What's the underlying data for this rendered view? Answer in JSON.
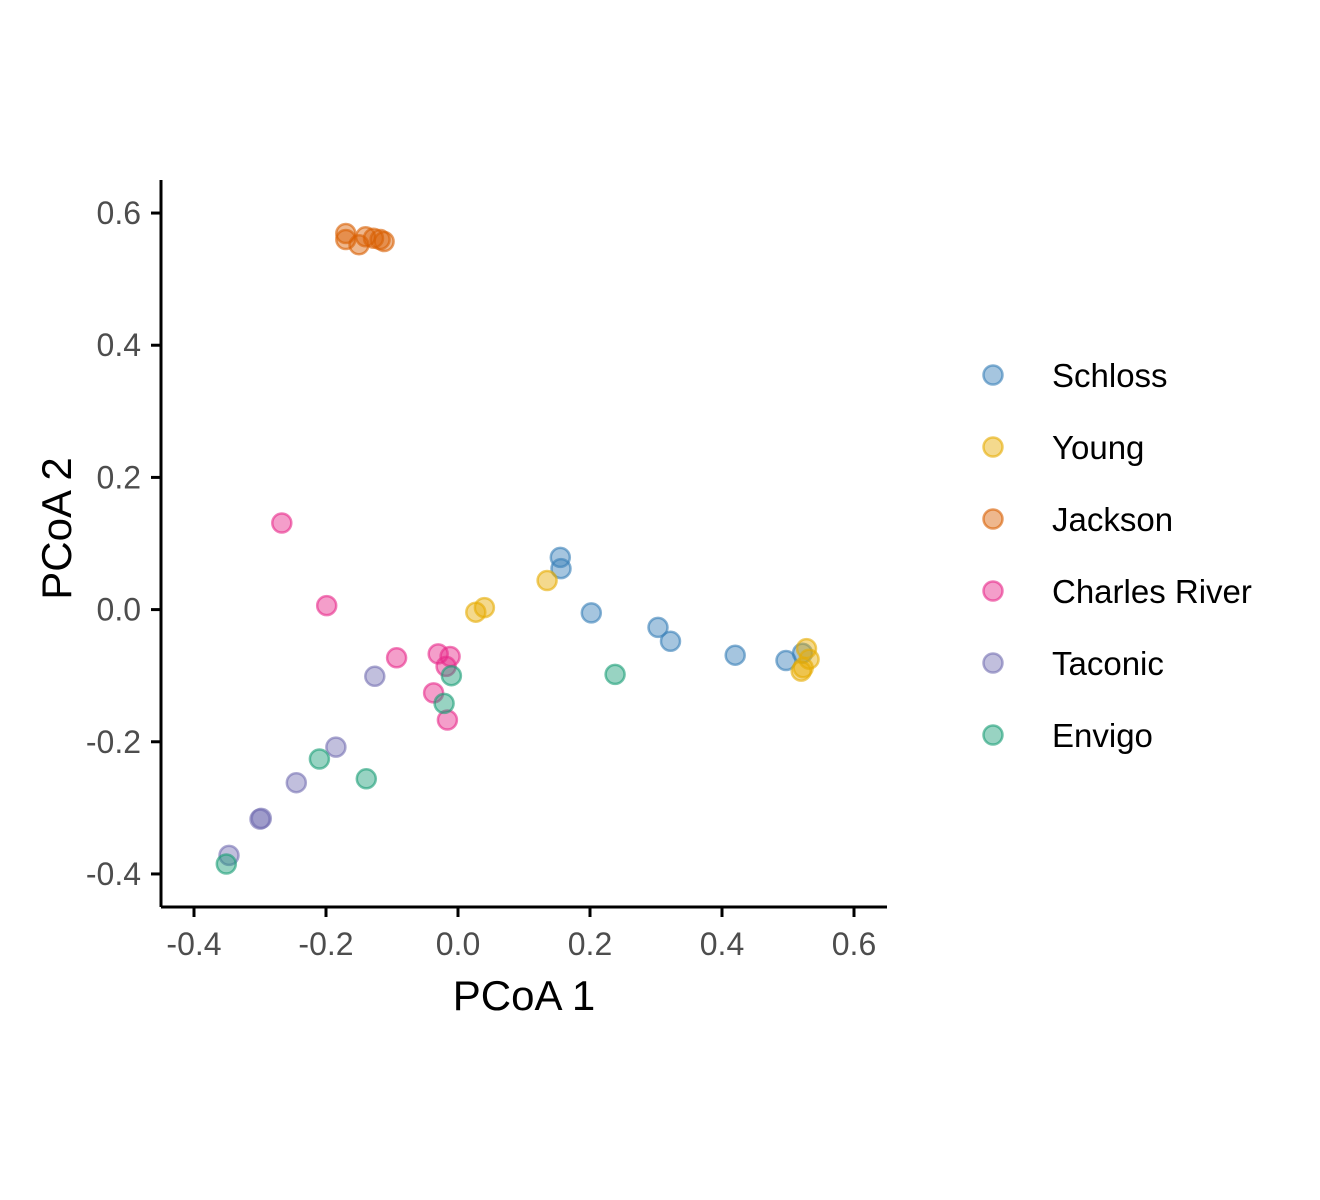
{
  "chart_data": {
    "type": "scatter",
    "title": "",
    "xlabel": "PCoA 1",
    "ylabel": "PCoA 2",
    "xlim": [
      -0.45,
      0.65
    ],
    "ylim": [
      -0.45,
      0.65
    ],
    "x_ticks": [
      "-0.4",
      "-0.2",
      "0.0",
      "0.2",
      "0.4",
      "0.6"
    ],
    "y_ticks": [
      "-0.4",
      "-0.2",
      "0.0",
      "0.2",
      "0.4",
      "0.6"
    ],
    "grid": false,
    "legend_position": "right",
    "series": [
      {
        "name": "Schloss",
        "color": "#377eb8",
        "points": [
          {
            "x": 0.155,
            "y": 0.079
          },
          {
            "x": 0.156,
            "y": 0.062
          },
          {
            "x": 0.202,
            "y": -0.005
          },
          {
            "x": 0.303,
            "y": -0.027
          },
          {
            "x": 0.322,
            "y": -0.048
          },
          {
            "x": 0.42,
            "y": -0.069
          },
          {
            "x": 0.497,
            "y": -0.077
          },
          {
            "x": 0.522,
            "y": -0.066
          }
        ]
      },
      {
        "name": "Young",
        "color": "#e6ab02",
        "points": [
          {
            "x": 0.135,
            "y": 0.044
          },
          {
            "x": 0.027,
            "y": -0.004
          },
          {
            "x": 0.04,
            "y": 0.003
          },
          {
            "x": 0.528,
            "y": -0.059
          },
          {
            "x": 0.532,
            "y": -0.075
          },
          {
            "x": 0.52,
            "y": -0.093
          },
          {
            "x": 0.523,
            "y": -0.088
          }
        ]
      },
      {
        "name": "Jackson",
        "color": "#d95f02",
        "points": [
          {
            "x": -0.17,
            "y": 0.569
          },
          {
            "x": -0.17,
            "y": 0.56
          },
          {
            "x": -0.15,
            "y": 0.552
          },
          {
            "x": -0.14,
            "y": 0.564
          },
          {
            "x": -0.128,
            "y": 0.562
          },
          {
            "x": -0.118,
            "y": 0.56
          },
          {
            "x": -0.112,
            "y": 0.557
          }
        ]
      },
      {
        "name": "Charles River",
        "color": "#e7298a",
        "points": [
          {
            "x": -0.267,
            "y": 0.131
          },
          {
            "x": -0.199,
            "y": 0.006
          },
          {
            "x": -0.093,
            "y": -0.073
          },
          {
            "x": -0.03,
            "y": -0.067
          },
          {
            "x": -0.012,
            "y": -0.071
          },
          {
            "x": -0.018,
            "y": -0.086
          },
          {
            "x": -0.037,
            "y": -0.126
          },
          {
            "x": -0.016,
            "y": -0.167
          }
        ]
      },
      {
        "name": "Taconic",
        "color": "#7570b3",
        "points": [
          {
            "x": -0.126,
            "y": -0.101
          },
          {
            "x": -0.185,
            "y": -0.208
          },
          {
            "x": -0.245,
            "y": -0.262
          },
          {
            "x": -0.3,
            "y": -0.317
          },
          {
            "x": -0.298,
            "y": -0.316
          },
          {
            "x": -0.347,
            "y": -0.372
          }
        ]
      },
      {
        "name": "Envigo",
        "color": "#1b9e77",
        "points": [
          {
            "x": 0.238,
            "y": -0.098
          },
          {
            "x": -0.01,
            "y": -0.1
          },
          {
            "x": -0.021,
            "y": -0.142
          },
          {
            "x": -0.21,
            "y": -0.226
          },
          {
            "x": -0.139,
            "y": -0.256
          },
          {
            "x": -0.351,
            "y": -0.385
          }
        ]
      }
    ]
  }
}
